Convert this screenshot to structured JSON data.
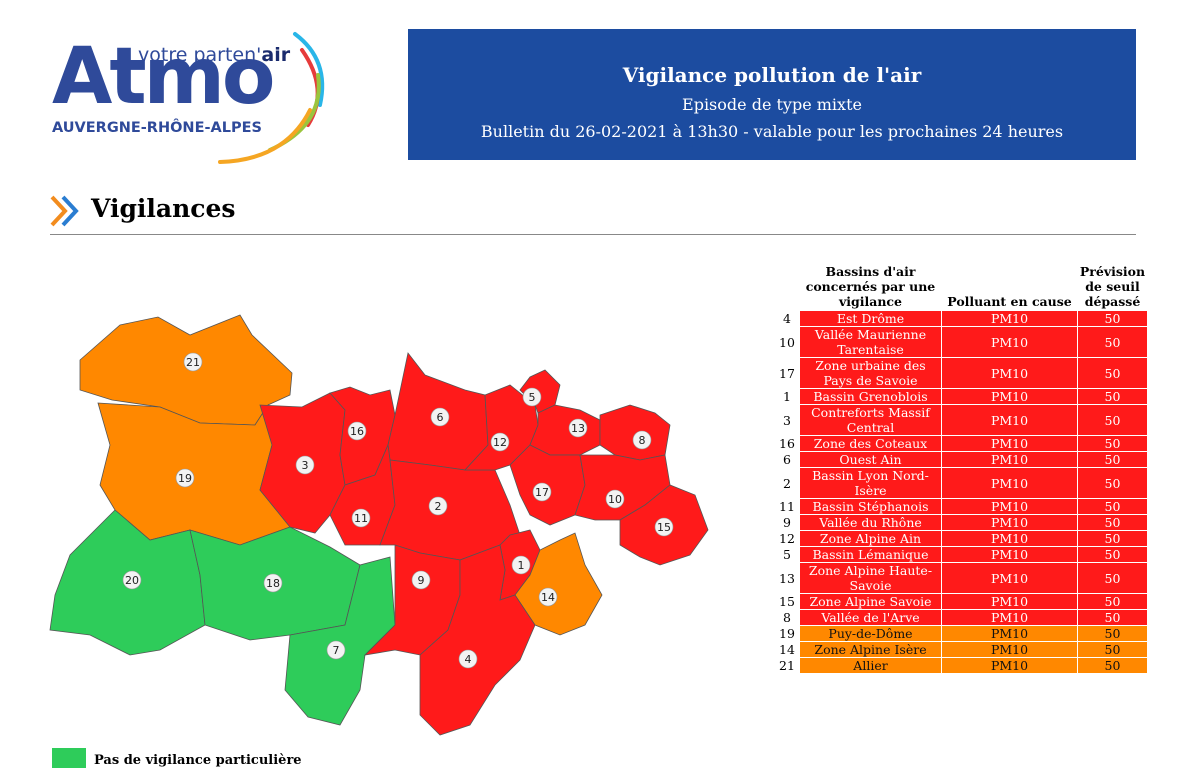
{
  "logo": {
    "brand": "Atmo",
    "tagline_prefix": "votre parten'",
    "tagline_suffix": "air",
    "region": "AUVERGNE-RHÔNE-ALPES"
  },
  "header": {
    "title": "Vigilance pollution de l'air",
    "subtitle": "Episode de type mixte",
    "bulletin": "Bulletin du 26-02-2021 à 13h30 - valable pour les prochaines 24 heures"
  },
  "section": {
    "title": "Vigilances",
    "icon": "double-chevron-icon"
  },
  "colors": {
    "banner": "#1c4ca0",
    "vigilance_red": "#ff1a1a",
    "vigilance_orange": "#ff8800",
    "no_vigilance_green": "#2ecc5a"
  },
  "map": {
    "zones": [
      {
        "id": "21",
        "level": "orange"
      },
      {
        "id": "19",
        "level": "orange"
      },
      {
        "id": "20",
        "level": "green"
      },
      {
        "id": "18",
        "level": "green"
      },
      {
        "id": "7",
        "level": "green"
      },
      {
        "id": "3",
        "level": "red"
      },
      {
        "id": "16",
        "level": "red"
      },
      {
        "id": "6",
        "level": "red"
      },
      {
        "id": "11",
        "level": "red"
      },
      {
        "id": "2",
        "level": "red"
      },
      {
        "id": "12",
        "level": "red"
      },
      {
        "id": "5",
        "level": "red"
      },
      {
        "id": "13",
        "level": "red"
      },
      {
        "id": "8",
        "level": "red"
      },
      {
        "id": "17",
        "level": "red"
      },
      {
        "id": "10",
        "level": "red"
      },
      {
        "id": "15",
        "level": "red"
      },
      {
        "id": "1",
        "level": "red"
      },
      {
        "id": "14",
        "level": "orange"
      },
      {
        "id": "9",
        "level": "red"
      },
      {
        "id": "4",
        "level": "red"
      }
    ]
  },
  "legend": {
    "no_vigilance": "Pas de vigilance particulière"
  },
  "table": {
    "headers": {
      "basin": "Bassins d'air concernés par une vigilance",
      "pollutant": "Polluant en cause",
      "threshold": "Prévision de seuil dépassé"
    },
    "rows": [
      {
        "num": "4",
        "name": "Est Drôme",
        "pollutant": "PM10",
        "value": "50",
        "level": "red"
      },
      {
        "num": "10",
        "name": "Vallée Maurienne Tarentaise",
        "pollutant": "PM10",
        "value": "50",
        "level": "red"
      },
      {
        "num": "17",
        "name": "Zone urbaine des Pays de Savoie",
        "pollutant": "PM10",
        "value": "50",
        "level": "red"
      },
      {
        "num": "1",
        "name": "Bassin Grenoblois",
        "pollutant": "PM10",
        "value": "50",
        "level": "red"
      },
      {
        "num": "3",
        "name": "Contreforts Massif Central",
        "pollutant": "PM10",
        "value": "50",
        "level": "red"
      },
      {
        "num": "16",
        "name": "Zone des Coteaux",
        "pollutant": "PM10",
        "value": "50",
        "level": "red"
      },
      {
        "num": "6",
        "name": "Ouest Ain",
        "pollutant": "PM10",
        "value": "50",
        "level": "red"
      },
      {
        "num": "2",
        "name": "Bassin Lyon Nord-Isère",
        "pollutant": "PM10",
        "value": "50",
        "level": "red"
      },
      {
        "num": "11",
        "name": "Bassin Stéphanois",
        "pollutant": "PM10",
        "value": "50",
        "level": "red"
      },
      {
        "num": "9",
        "name": "Vallée du Rhône",
        "pollutant": "PM10",
        "value": "50",
        "level": "red"
      },
      {
        "num": "12",
        "name": "Zone Alpine Ain",
        "pollutant": "PM10",
        "value": "50",
        "level": "red"
      },
      {
        "num": "5",
        "name": "Bassin Lémanique",
        "pollutant": "PM10",
        "value": "50",
        "level": "red"
      },
      {
        "num": "13",
        "name": "Zone Alpine Haute-Savoie",
        "pollutant": "PM10",
        "value": "50",
        "level": "red"
      },
      {
        "num": "15",
        "name": "Zone Alpine Savoie",
        "pollutant": "PM10",
        "value": "50",
        "level": "red"
      },
      {
        "num": "8",
        "name": "Vallée de l'Arve",
        "pollutant": "PM10",
        "value": "50",
        "level": "red"
      },
      {
        "num": "19",
        "name": "Puy-de-Dôme",
        "pollutant": "PM10",
        "value": "50",
        "level": "orange"
      },
      {
        "num": "14",
        "name": "Zone Alpine Isère",
        "pollutant": "PM10",
        "value": "50",
        "level": "orange"
      },
      {
        "num": "21",
        "name": "Allier",
        "pollutant": "PM10",
        "value": "50",
        "level": "orange"
      }
    ]
  }
}
